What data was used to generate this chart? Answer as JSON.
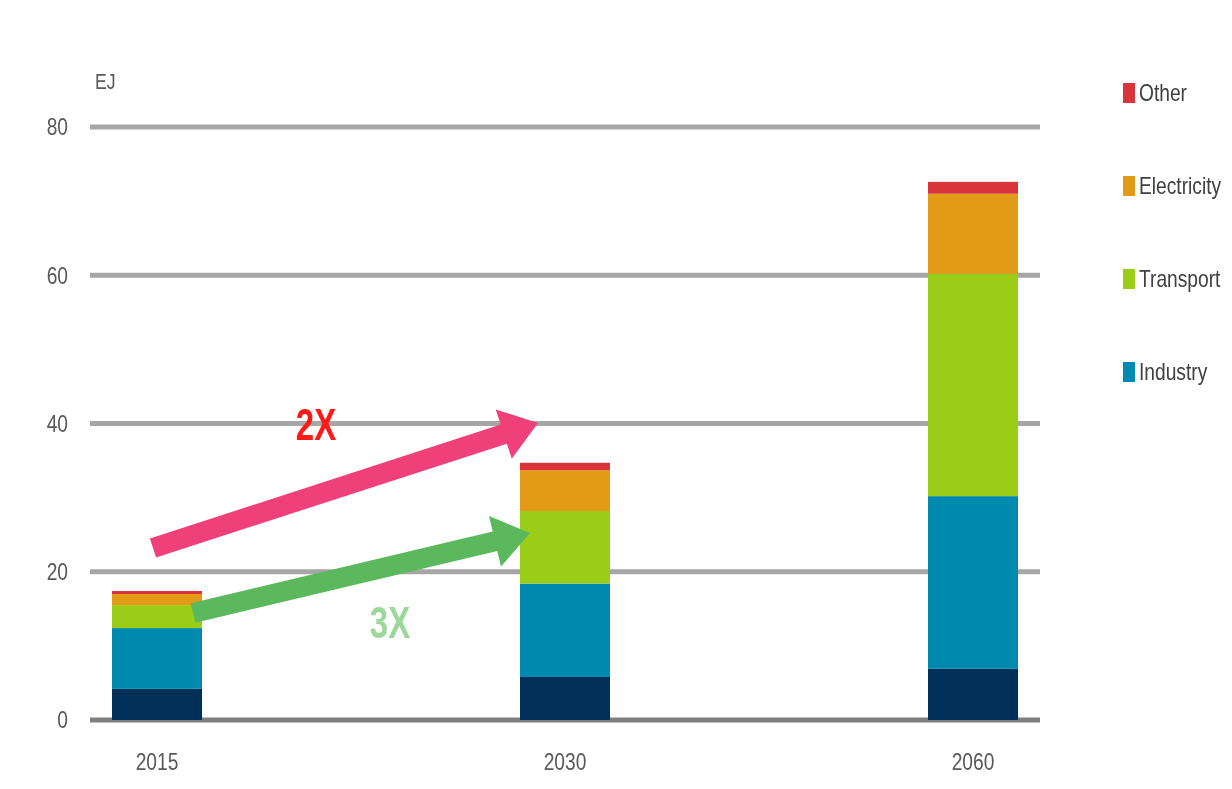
{
  "chart_data": {
    "type": "bar",
    "stacked": true,
    "ylabel": "EJ",
    "categories": [
      "2015",
      "2030",
      "2060"
    ],
    "series": [
      {
        "color": "#003057",
        "values": [
          4.2,
          5.8,
          6.9
        ]
      },
      {
        "name": "Industry",
        "color": "#008ab0",
        "values": [
          8.2,
          12.6,
          23.3
        ]
      },
      {
        "name": "Transport",
        "color": "#9acd17",
        "values": [
          3.1,
          9.8,
          30.0
        ]
      },
      {
        "name": "Electricity",
        "color": "#e39a17",
        "values": [
          1.5,
          5.5,
          10.8
        ]
      },
      {
        "name": "Other",
        "color": "#d9343a",
        "values": [
          0.4,
          1.0,
          1.6
        ]
      }
    ],
    "ylim": [
      0,
      80
    ],
    "yticks": [
      0,
      20,
      40,
      60,
      80
    ],
    "grid": "y",
    "legend": "top right",
    "annotations": [
      "2X",
      "3X"
    ]
  }
}
